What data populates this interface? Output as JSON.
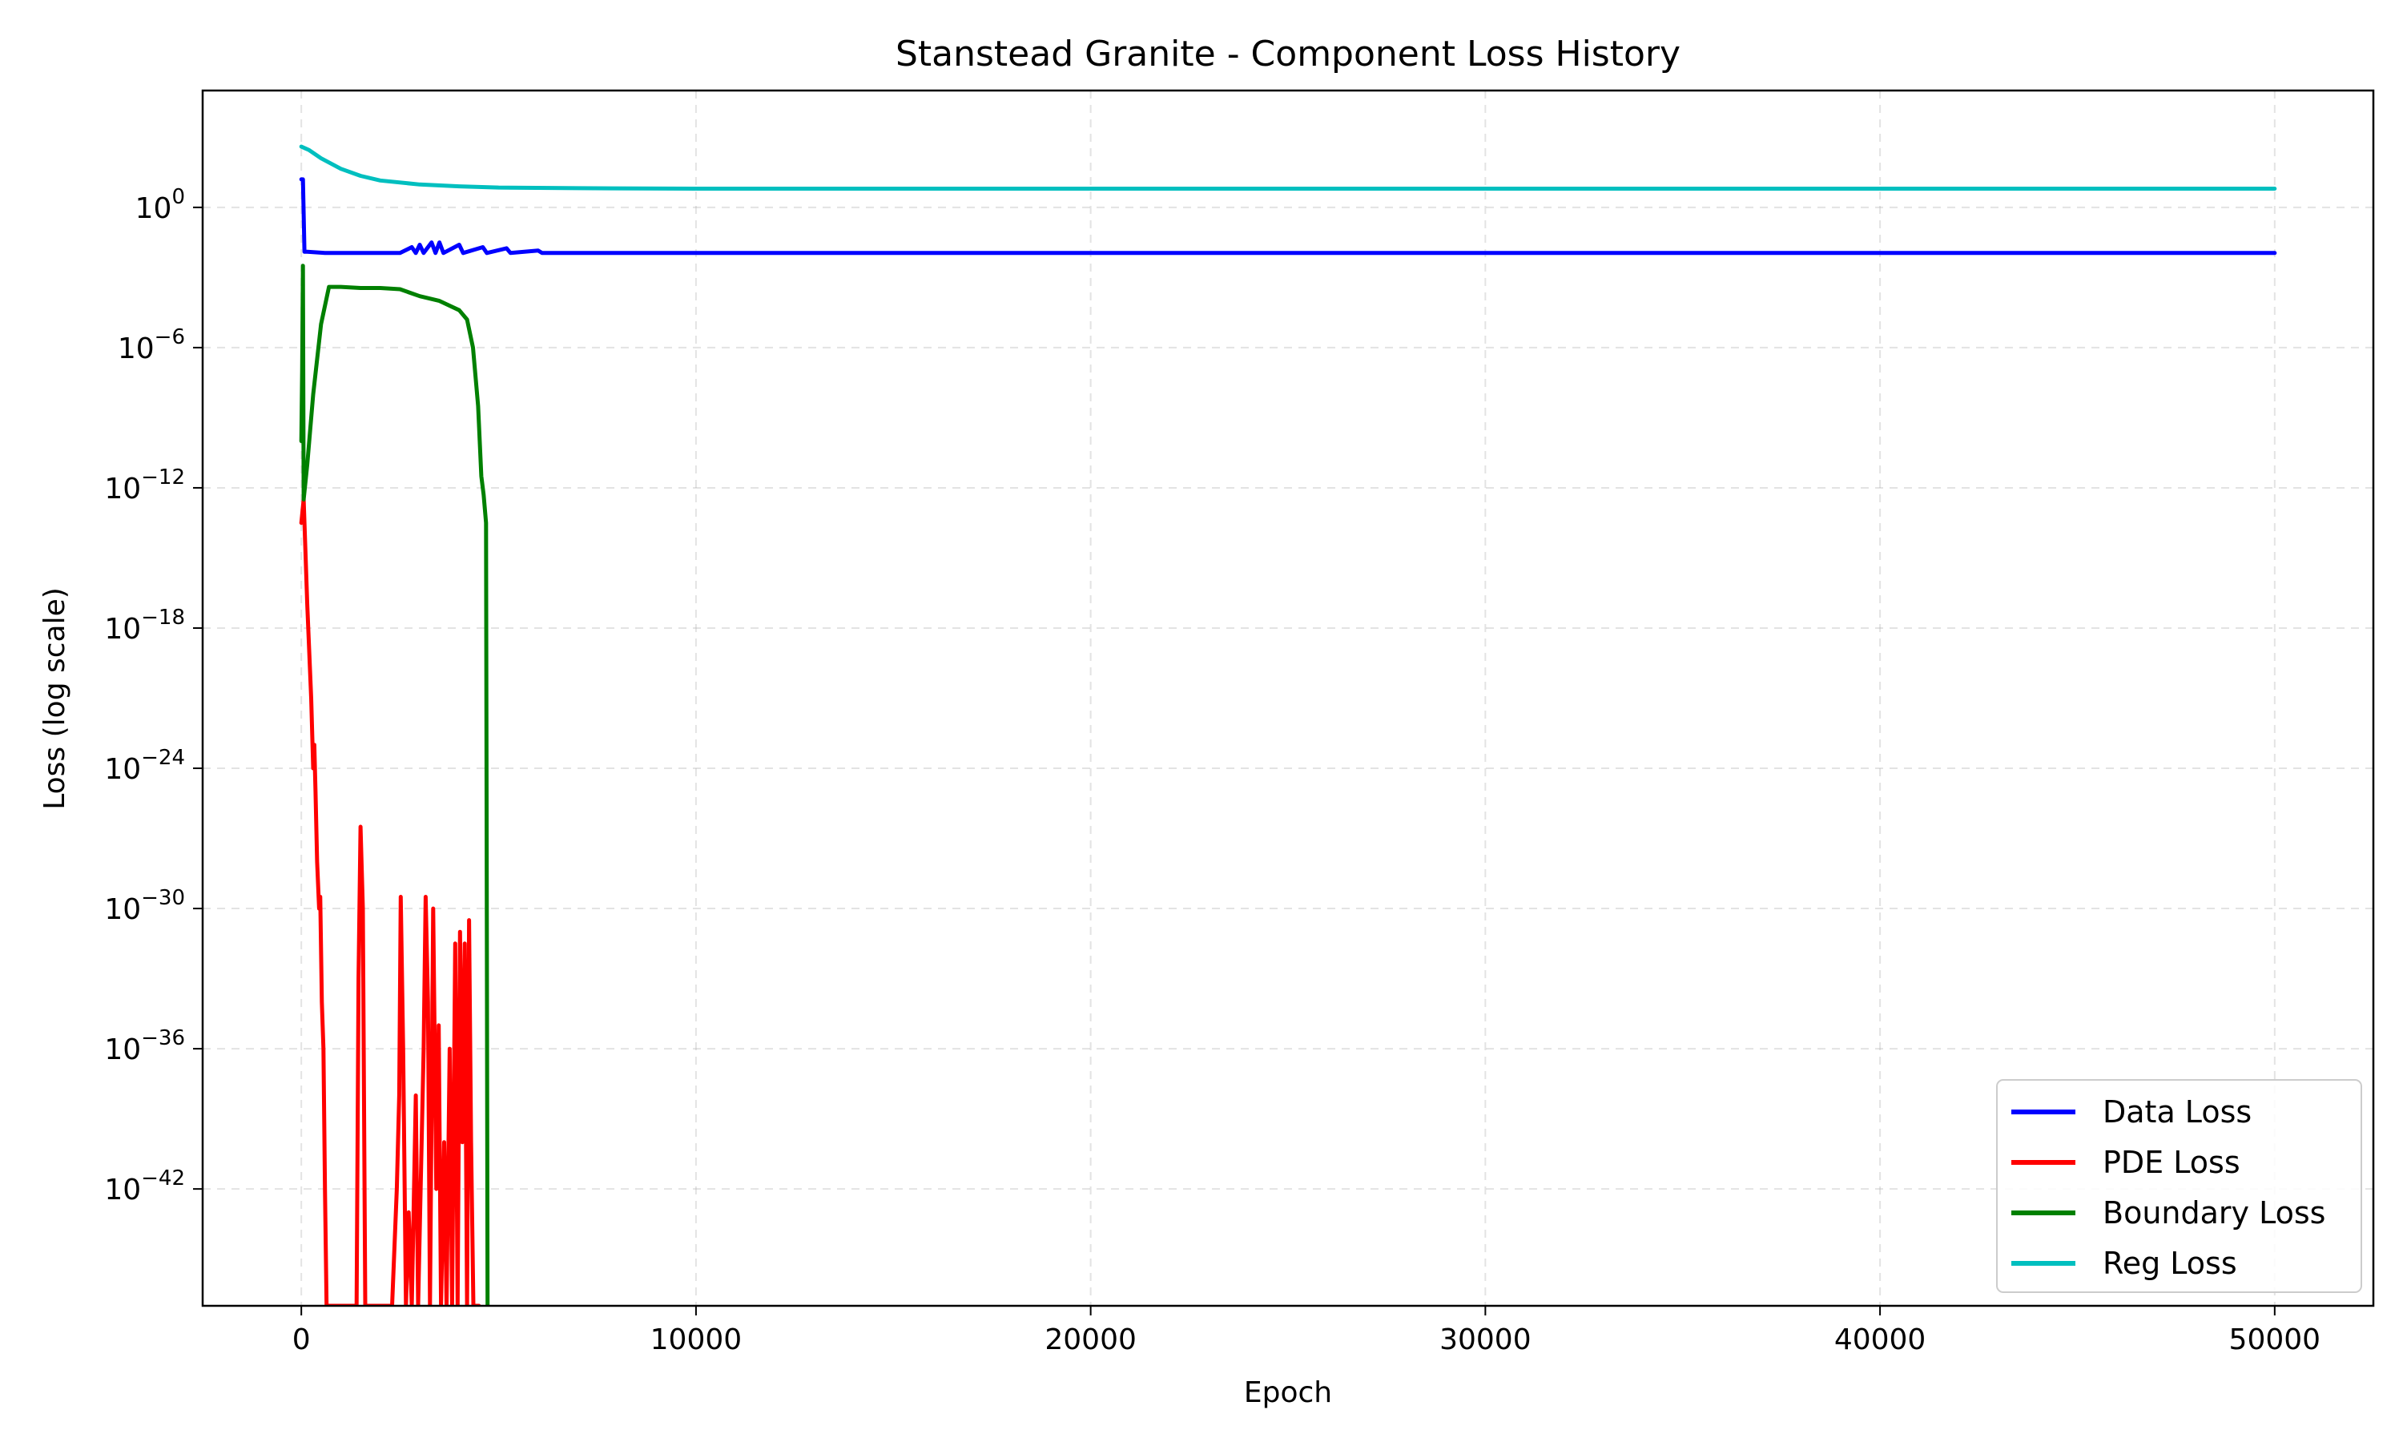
{
  "chart_data": {
    "type": "line",
    "title": "Stanstead Granite - Component Loss History",
    "xlabel": "Epoch",
    "ylabel": "Loss (log scale)",
    "xlim": [
      -2500,
      52500
    ],
    "ylim_log10": [
      -47,
      5
    ],
    "y_scale": "log",
    "grid": true,
    "legend_position": "lower right",
    "x_ticks": [
      {
        "value": 0,
        "label": "0"
      },
      {
        "value": 10000,
        "label": "10000"
      },
      {
        "value": 20000,
        "label": "20000"
      },
      {
        "value": 30000,
        "label": "30000"
      },
      {
        "value": 40000,
        "label": "40000"
      },
      {
        "value": 50000,
        "label": "50000"
      }
    ],
    "y_ticks": [
      {
        "exp": 0,
        "base": "10",
        "sup": "0"
      },
      {
        "exp": -6,
        "base": "10",
        "sup": "−6"
      },
      {
        "exp": -12,
        "base": "10",
        "sup": "−12"
      },
      {
        "exp": -18,
        "base": "10",
        "sup": "−18"
      },
      {
        "exp": -24,
        "base": "10",
        "sup": "−24"
      },
      {
        "exp": -30,
        "base": "10",
        "sup": "−30"
      },
      {
        "exp": -36,
        "base": "10",
        "sup": "−36"
      },
      {
        "exp": -42,
        "base": "10",
        "sup": "−42"
      }
    ],
    "series": [
      {
        "name": "Data Loss",
        "color": "#0000ff",
        "points": [
          [
            0,
            1.2
          ],
          [
            40,
            1.2
          ],
          [
            80,
            -1.9
          ],
          [
            150,
            -1.9
          ],
          [
            600,
            -1.95
          ],
          [
            1500,
            -1.95
          ],
          [
            2500,
            -1.95
          ],
          [
            2800,
            -1.7
          ],
          [
            2900,
            -1.95
          ],
          [
            3000,
            -1.6
          ],
          [
            3100,
            -1.95
          ],
          [
            3300,
            -1.5
          ],
          [
            3400,
            -1.95
          ],
          [
            3500,
            -1.5
          ],
          [
            3600,
            -1.95
          ],
          [
            4000,
            -1.6
          ],
          [
            4100,
            -1.95
          ],
          [
            4600,
            -1.7
          ],
          [
            4700,
            -1.95
          ],
          [
            5200,
            -1.75
          ],
          [
            5300,
            -1.95
          ],
          [
            6000,
            -1.85
          ],
          [
            6100,
            -1.95
          ],
          [
            8000,
            -1.95
          ],
          [
            24000,
            -1.95
          ],
          [
            50000,
            -1.95
          ]
        ]
      },
      {
        "name": "PDE Loss",
        "color": "#ff0000",
        "points": [
          [
            0,
            -13.5
          ],
          [
            60,
            -12.5
          ],
          [
            150,
            -17
          ],
          [
            250,
            -21
          ],
          [
            300,
            -24
          ],
          [
            330,
            -23
          ],
          [
            360,
            -25
          ],
          [
            400,
            -28
          ],
          [
            450,
            -30
          ],
          [
            480,
            -29.5
          ],
          [
            520,
            -34
          ],
          [
            560,
            -36
          ],
          [
            600,
            -42
          ],
          [
            640,
            -47
          ],
          [
            1400,
            -47
          ],
          [
            1450,
            -33
          ],
          [
            1500,
            -26.5
          ],
          [
            1560,
            -30
          ],
          [
            1620,
            -47
          ],
          [
            2300,
            -47
          ],
          [
            2420,
            -42
          ],
          [
            2480,
            -38
          ],
          [
            2520,
            -29.5
          ],
          [
            2580,
            -36
          ],
          [
            2650,
            -47
          ],
          [
            2720,
            -43
          ],
          [
            2800,
            -47
          ],
          [
            2900,
            -38
          ],
          [
            2960,
            -47
          ],
          [
            3100,
            -36
          ],
          [
            3150,
            -29.5
          ],
          [
            3210,
            -34
          ],
          [
            3260,
            -47
          ],
          [
            3340,
            -30
          ],
          [
            3420,
            -42
          ],
          [
            3480,
            -35
          ],
          [
            3540,
            -47
          ],
          [
            3620,
            -40
          ],
          [
            3680,
            -47
          ],
          [
            3760,
            -36
          ],
          [
            3820,
            -47
          ],
          [
            3900,
            -31.5
          ],
          [
            3960,
            -47
          ],
          [
            4020,
            -31
          ],
          [
            4080,
            -40
          ],
          [
            4140,
            -31.5
          ],
          [
            4200,
            -47
          ],
          [
            4250,
            -30.5
          ],
          [
            4300,
            -40
          ],
          [
            4360,
            -47
          ],
          [
            4500,
            -47
          ]
        ]
      },
      {
        "name": "Boundary Loss",
        "color": "#008000",
        "points": [
          [
            0,
            -10
          ],
          [
            20,
            -7
          ],
          [
            40,
            -2.5
          ],
          [
            60,
            -12.5
          ],
          [
            150,
            -11
          ],
          [
            300,
            -8
          ],
          [
            500,
            -5
          ],
          [
            700,
            -3.4
          ],
          [
            1000,
            -3.4
          ],
          [
            1500,
            -3.45
          ],
          [
            2000,
            -3.45
          ],
          [
            2500,
            -3.5
          ],
          [
            3000,
            -3.8
          ],
          [
            3500,
            -4
          ],
          [
            4000,
            -4.4
          ],
          [
            4200,
            -4.8
          ],
          [
            4350,
            -6
          ],
          [
            4480,
            -8.5
          ],
          [
            4560,
            -11.5
          ],
          [
            4620,
            -12.3
          ],
          [
            4680,
            -13.5
          ],
          [
            4720,
            -47
          ]
        ]
      },
      {
        "name": "Reg Loss",
        "color": "#00bfbf",
        "points": [
          [
            0,
            2.6
          ],
          [
            200,
            2.45
          ],
          [
            500,
            2.1
          ],
          [
            1000,
            1.65
          ],
          [
            1500,
            1.35
          ],
          [
            2000,
            1.15
          ],
          [
            3000,
            0.98
          ],
          [
            4000,
            0.9
          ],
          [
            5000,
            0.85
          ],
          [
            7000,
            0.82
          ],
          [
            10000,
            0.8
          ],
          [
            20000,
            0.8
          ],
          [
            50000,
            0.8
          ]
        ]
      }
    ]
  }
}
